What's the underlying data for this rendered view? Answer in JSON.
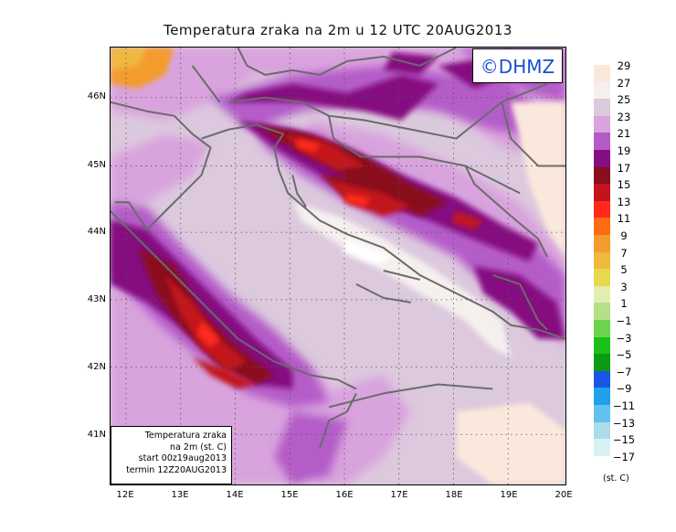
{
  "title": "Temperatura zraka na 2m u 12 UTC 20AUG2013",
  "copyright": "©DHMZ",
  "info": {
    "line1": "Temperatura zraka",
    "line2": "na 2m (st. C)",
    "line3": "start 00z19aug2013",
    "line4": "termin 12Z20AUG2013"
  },
  "axes": {
    "lat_labels": [
      "46N",
      "45N",
      "44N",
      "43N",
      "42N",
      "41N"
    ],
    "lon_labels": [
      "12E",
      "13E",
      "14E",
      "15E",
      "16E",
      "17E",
      "18E",
      "19E",
      "20E"
    ],
    "lat_range": [
      40.3,
      46.8
    ],
    "lon_range": [
      11.7,
      20.0
    ]
  },
  "legend": {
    "labels": [
      "29",
      "27",
      "25",
      "23",
      "21",
      "19",
      "17",
      "15",
      "13",
      "11",
      "9",
      "7",
      "5",
      "3",
      "1",
      "−1",
      "−3",
      "−5",
      "−7",
      "−9",
      "−11",
      "−13",
      "−15",
      "−17"
    ],
    "colors": [
      "#fbe8dc",
      "#f5f0ee",
      "#dcc9de",
      "#d9a3dd",
      "#b45bc8",
      "#850f80",
      "#8a0e1c",
      "#c3141d",
      "#ff2a1a",
      "#ff6a14",
      "#f49b2e",
      "#f0b83c",
      "#e8d84b",
      "#e2eeb0",
      "#b6e088",
      "#6cd44a",
      "#19c11a",
      "#0c9a14",
      "#1b55e8",
      "#1ea0ea",
      "#62c2ee",
      "#a8dde9",
      "#d8f1f5",
      "#ffffff"
    ],
    "unit": "(st. C)"
  }
}
